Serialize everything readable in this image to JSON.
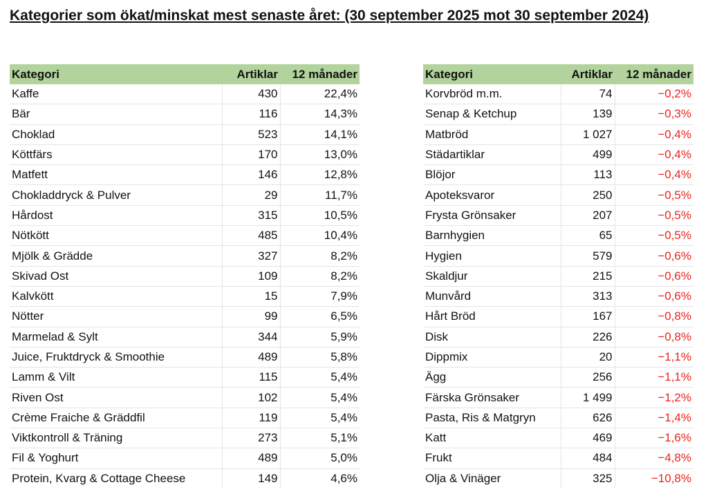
{
  "title": "Kategorier som ökat/minskat mest senaste året: (30 september 2025 mot 30 september 2024)",
  "headers": [
    "Kategori",
    "Artiklar",
    "12 månader"
  ],
  "colors": {
    "header_bg": "#b3d39c",
    "negative": "#e8231b"
  },
  "increased": [
    [
      "Kaffe",
      "430",
      "22,4%"
    ],
    [
      "Bär",
      "116",
      "14,3%"
    ],
    [
      "Choklad",
      "523",
      "14,1%"
    ],
    [
      "Köttfärs",
      "170",
      "13,0%"
    ],
    [
      "Matfett",
      "146",
      "12,8%"
    ],
    [
      "Chokladdryck & Pulver",
      "29",
      "11,7%"
    ],
    [
      "Hårdost",
      "315",
      "10,5%"
    ],
    [
      "Nötkött",
      "485",
      "10,4%"
    ],
    [
      "Mjölk & Grädde",
      "327",
      "8,2%"
    ],
    [
      "Skivad Ost",
      "109",
      "8,2%"
    ],
    [
      "Kalvkött",
      "15",
      "7,9%"
    ],
    [
      "Nötter",
      "99",
      "6,5%"
    ],
    [
      "Marmelad & Sylt",
      "344",
      "5,9%"
    ],
    [
      "Juice, Fruktdryck & Smoothie",
      "489",
      "5,8%"
    ],
    [
      "Lamm & Vilt",
      "115",
      "5,4%"
    ],
    [
      "Riven Ost",
      "102",
      "5,4%"
    ],
    [
      "Crème Fraiche & Gräddfil",
      "119",
      "5,4%"
    ],
    [
      "Viktkontroll & Träning",
      "273",
      "5,1%"
    ],
    [
      "Fil & Yoghurt",
      "489",
      "5,0%"
    ],
    [
      "Protein, Kvarg & Cottage Cheese",
      "149",
      "4,6%"
    ]
  ],
  "decreased": [
    [
      "Korvbröd m.m.",
      "74",
      "−0,2%"
    ],
    [
      "Senap & Ketchup",
      "139",
      "−0,3%"
    ],
    [
      "Matbröd",
      "1 027",
      "−0,4%"
    ],
    [
      "Städartiklar",
      "499",
      "−0,4%"
    ],
    [
      "Blöjor",
      "113",
      "−0,4%"
    ],
    [
      "Apoteksvaror",
      "250",
      "−0,5%"
    ],
    [
      "Frysta Grönsaker",
      "207",
      "−0,5%"
    ],
    [
      "Barnhygien",
      "65",
      "−0,5%"
    ],
    [
      "Hygien",
      "579",
      "−0,6%"
    ],
    [
      "Skaldjur",
      "215",
      "−0,6%"
    ],
    [
      "Munvård",
      "313",
      "−0,6%"
    ],
    [
      "Hårt Bröd",
      "167",
      "−0,8%"
    ],
    [
      "Disk",
      "226",
      "−0,8%"
    ],
    [
      "Dippmix",
      "20",
      "−1,1%"
    ],
    [
      "Ägg",
      "256",
      "−1,1%"
    ],
    [
      "Färska Grönsaker",
      "1 499",
      "−1,2%"
    ],
    [
      "Pasta, Ris & Matgryn",
      "626",
      "−1,4%"
    ],
    [
      "Katt",
      "469",
      "−1,6%"
    ],
    [
      "Frukt",
      "484",
      "−4,8%"
    ],
    [
      "Olja & Vinäger",
      "325",
      "−10,8%"
    ]
  ]
}
